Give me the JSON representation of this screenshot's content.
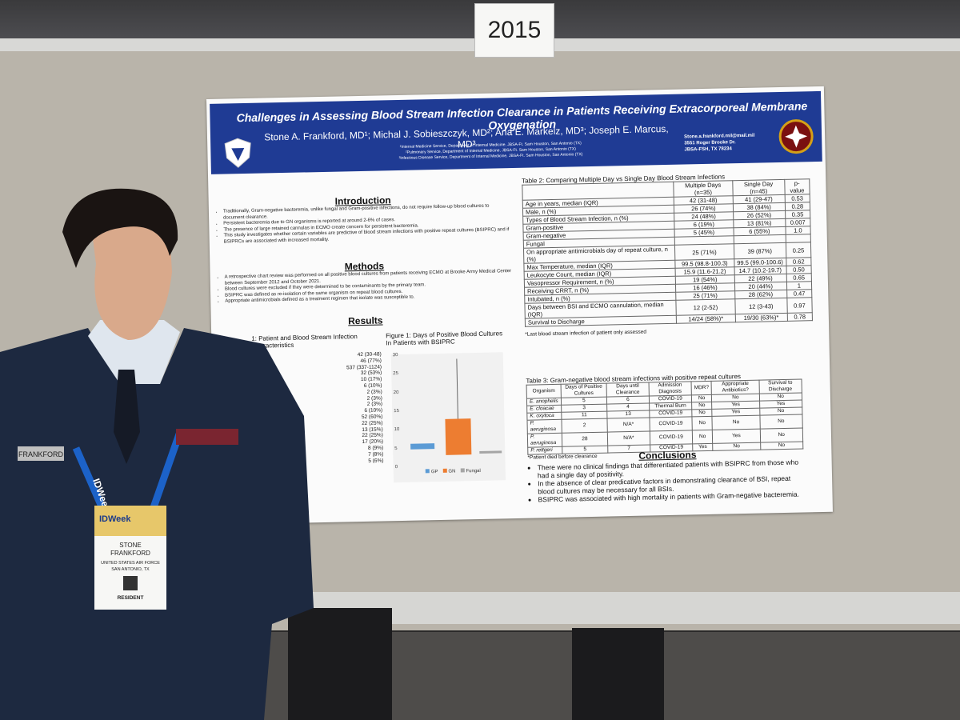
{
  "sign": "2015",
  "poster": {
    "title": "Challenges in Assessing Blood Stream Infection Clearance in Patients Receiving Extracorporeal Membrane Oxygenation",
    "authors": "Stone A. Frankford, MD¹; Michal J. Sobieszczyk, MD²; Ana E. Markelz, MD³; Joseph E. Marcus, MD³",
    "affiliations": [
      "¹Internal Medicine Service, Department of Internal Medicine, JBSA-Ft. Sam Houston, San Antonio (TX)",
      "²Pulmonary Service, Department of Internal Medicine, JBSA-Ft. Sam Houston, San Antonio (TX)",
      "³Infectious Disease Service, Department of Internal Medicine, JBSA-Ft. Sam Houston, San Antonio (TX)"
    ],
    "contact": [
      "Stone.a.frankford.mil@mail.mil",
      "3551 Roger Brooke Dr.",
      "JBSA-FSH, TX 78234"
    ],
    "introduction": {
      "heading": "Introduction",
      "bullets": [
        "Traditionally, Gram-negative bacteremia, unlike fungal and Gram-positive infections, do not require follow-up blood cultures to document clearance.",
        "Persistent bacteremia due to GN organisms is reported at around 2-6% of cases.",
        "The presence of large retained cannulas in ECMO create concern for persistent bacteremia.",
        "This study investigates whether certain variables are predictive of blood stream infections with positive repeat cultures (BSIPRC) and if BSIPRCs are associated with increased mortality."
      ]
    },
    "methods": {
      "heading": "Methods",
      "bullets": [
        "A retrospective chart review was performed on all positive blood cultures from patients receiving ECMO at Brooke Army Medical Center between September 2012 and October 2021.",
        "Blood cultures were excluded if they were determined to be contaminants by the primary team.",
        "BSIPRC was defined as re-isolation of the same organism on repeat blood cultures.",
        "Appropriate antimicrobials defined as a treatment regimen that isolate was susceptible to."
      ]
    },
    "results": {
      "heading": "Results",
      "table1_title": "1: Patient and Blood Stream Infection Characteristics",
      "table1_values": [
        "42 (30-48)",
        "46 (77%)",
        "537 (337-1124)",
        "32 (53%)",
        "10 (17%)",
        "6 (10%)",
        "2 (3%)",
        "2 (3%)",
        "2 (3%)",
        "6 (10%)",
        "52 (60%)",
        "22 (25%)",
        "13 (15%)",
        "22 (25%)",
        "17 (20%)",
        "8 (9%)",
        "7 (8%)",
        "5 (6%)"
      ]
    },
    "figure1": {
      "title": "Figure 1: Days of Positive Blood Cultures In Patients with BSIPRC",
      "yticks": [
        "30",
        "25",
        "20",
        "15",
        "10",
        "5",
        "0"
      ],
      "legend": [
        "GP",
        "GN",
        "Fungal"
      ]
    },
    "table2": {
      "title": "Table 2: Comparing Multiple Day vs Single Day Blood Stream Infections",
      "headers": [
        null,
        "Multiple Days (n=35)",
        "Single Day (n=45)",
        "p-value"
      ],
      "rows": [
        [
          "Age in years, median (IQR)",
          "42 (31-48)",
          "41 (29-47)",
          "0.53"
        ],
        [
          "Male, n (%)",
          "26 (74%)",
          "38 (84%)",
          "0.28"
        ],
        [
          "Types of Blood Stream Infection, n (%)",
          "24 (48%)",
          "26 (52%)",
          "0.35"
        ],
        [
          "Gram-positive",
          "6 (19%)",
          "13 (81%)",
          "0.007"
        ],
        [
          "Gram-negative",
          "5 (45%)",
          "6 (55%)",
          "1.0"
        ],
        [
          "Fungal",
          null,
          null,
          null
        ],
        [
          "On appropriate antimicrobials day of repeat culture, n (%)",
          "25 (71%)",
          "39 (87%)",
          "0.25"
        ],
        [
          "Max Temperature, median (IQR)",
          "99.5 (98.8-100.3)",
          "99.5 (99.0-100.6)",
          "0.62"
        ],
        [
          "Leukocyte Count, median (IQR)",
          "15.9 (11.6-21.2)",
          "14.7 (10.2-19.7)",
          "0.50"
        ],
        [
          "Vasopressor Requirement, n (%)",
          "19 (54%)",
          "22 (49%)",
          "0.65"
        ],
        [
          "Receiving CRRT, n (%)",
          "16 (46%)",
          "20 (44%)",
          "1"
        ],
        [
          "Intubated, n (%)",
          "25 (71%)",
          "28 (62%)",
          "0.47"
        ],
        [
          "Days between BSI and ECMO cannulation, median (IQR)",
          "12 (2-52)",
          "12 (3-43)",
          "0.97"
        ],
        [
          "Survival to Discharge",
          "14/24 (58%)*",
          "19/30 (63%)*",
          "0.78"
        ]
      ],
      "footnote": "*Last blood stream infection of patient only assessed"
    },
    "table3": {
      "title": "Table 3: Gram-negative blood stream infections with positive repeat cultures",
      "headers": [
        "Organism",
        "Days of Positive Cultures",
        "Days until Clearance",
        "Admission Diagnosis",
        "MDR?",
        "Appropriate Antibiotics?",
        "Survival to Discharge"
      ],
      "rows": [
        [
          "E. anophelis",
          "5",
          "6",
          "COVID-19",
          "No",
          "No",
          "No"
        ],
        [
          "E. cloacae",
          "3",
          "4",
          "Thermal Burn",
          "No",
          "Yes",
          "Yes"
        ],
        [
          "K. oxytoca",
          "11",
          "13",
          "COVID-19",
          "No",
          "Yes",
          "No"
        ],
        [
          "P. aeruginosa",
          "2",
          "N/A*",
          "COVID-19",
          "No",
          "No",
          "No"
        ],
        [
          "P. aeruginosa",
          "28",
          "N/A*",
          "COVID-19",
          "No",
          "Yes",
          "No"
        ],
        [
          "P. rettgeri",
          "5",
          "7",
          "COVID-19",
          "Yes",
          "No",
          "No"
        ]
      ],
      "footnote": "*Patient died before clearance"
    },
    "conclusions": {
      "heading": "Conclusions",
      "bullets": [
        "There were no clinical findings that differentiated patients with BSIPRC from those who had a single day of positivity.",
        "In the absence of clear predicative factors in demonstrating clearance of BSI, repeat blood cultures may be necessary for all BSIs.",
        "BSIPRC was associated with high mortality in patients with Gram-negative bacteremia."
      ]
    }
  },
  "nametag": "FRANKFORD",
  "badge": {
    "event": "IDWeek",
    "first_name": "STONE",
    "last_name": "FRANKFORD",
    "org": "UNITED STATES AIR FORCE",
    "city": "SAN ANTONIO, TX",
    "role": "RESIDENT"
  },
  "lanyard": "IDWeek"
}
